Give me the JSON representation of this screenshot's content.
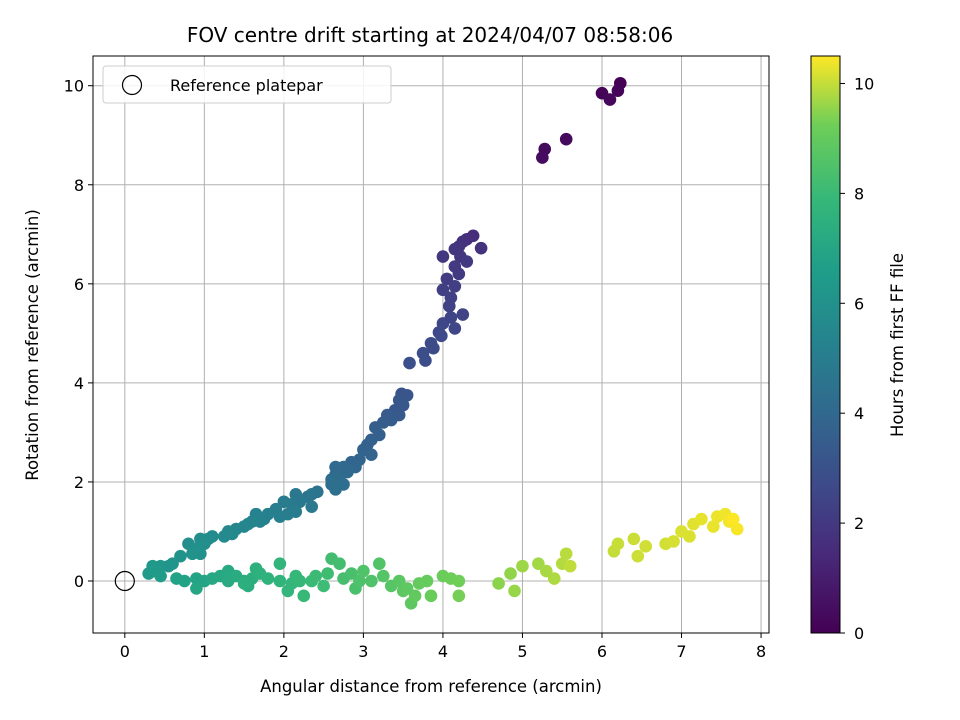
{
  "chart_data": {
    "type": "scatter",
    "title": "FOV centre drift starting at 2024/04/07 08:58:06",
    "xlabel": "Angular distance from reference (arcmin)",
    "ylabel": "Rotation from reference (arcmin)",
    "xlim": [
      -0.4,
      8.1
    ],
    "ylim": [
      -1.05,
      10.6
    ],
    "xticks": [
      0,
      1,
      2,
      3,
      4,
      5,
      6,
      7,
      8
    ],
    "yticks": [
      0,
      2,
      4,
      6,
      8,
      10
    ],
    "grid": true,
    "legend": {
      "placement": "top-left",
      "entries": [
        "Reference platepar"
      ]
    },
    "reference_point": {
      "x": 0,
      "y": 0,
      "label": "Reference platepar"
    },
    "colorbar": {
      "label": "Hours from first FF file",
      "min": 0,
      "max": 10.5,
      "ticks": [
        0,
        2,
        4,
        6,
        8,
        10
      ],
      "colormap": "viridis"
    },
    "series": [
      {
        "color_by": "hours",
        "points": [
          [
            6.23,
            10.05,
            0.05
          ],
          [
            6.2,
            9.9,
            0.1
          ],
          [
            6.0,
            9.85,
            0.15
          ],
          [
            6.1,
            9.72,
            0.2
          ],
          [
            5.55,
            8.92,
            0.3
          ],
          [
            5.28,
            8.72,
            0.35
          ],
          [
            5.25,
            8.55,
            0.4
          ],
          [
            4.38,
            6.97,
            1.6
          ],
          [
            4.3,
            6.9,
            1.65
          ],
          [
            4.25,
            6.85,
            1.7
          ],
          [
            4.48,
            6.72,
            1.75
          ],
          [
            4.2,
            6.75,
            1.8
          ],
          [
            4.15,
            6.7,
            1.85
          ],
          [
            4.22,
            6.55,
            1.9
          ],
          [
            4.0,
            6.55,
            1.95
          ],
          [
            4.3,
            6.45,
            2.0
          ],
          [
            4.15,
            6.35,
            2.05
          ],
          [
            4.2,
            6.2,
            2.1
          ],
          [
            4.05,
            6.1,
            2.15
          ],
          [
            4.15,
            5.95,
            2.2
          ],
          [
            4.0,
            5.88,
            2.25
          ],
          [
            4.1,
            5.72,
            2.3
          ],
          [
            4.08,
            5.55,
            2.35
          ],
          [
            4.25,
            5.38,
            2.4
          ],
          [
            4.1,
            5.32,
            2.45
          ],
          [
            4.0,
            5.2,
            2.5
          ],
          [
            4.15,
            5.1,
            2.55
          ],
          [
            3.95,
            5.02,
            2.6
          ],
          [
            3.98,
            4.95,
            2.65
          ],
          [
            3.85,
            4.8,
            2.7
          ],
          [
            3.88,
            4.7,
            2.75
          ],
          [
            3.75,
            4.6,
            2.8
          ],
          [
            3.78,
            4.45,
            2.85
          ],
          [
            3.58,
            4.4,
            2.9
          ],
          [
            3.48,
            3.78,
            3.1
          ],
          [
            3.55,
            3.75,
            3.15
          ],
          [
            3.45,
            3.65,
            3.2
          ],
          [
            3.5,
            3.55,
            3.25
          ],
          [
            3.4,
            3.45,
            3.3
          ],
          [
            3.45,
            3.35,
            3.35
          ],
          [
            3.3,
            3.35,
            3.4
          ],
          [
            3.35,
            3.25,
            3.45
          ],
          [
            3.25,
            3.2,
            3.5
          ],
          [
            3.15,
            3.1,
            3.55
          ],
          [
            3.2,
            2.95,
            3.6
          ],
          [
            3.1,
            2.85,
            3.65
          ],
          [
            3.05,
            2.75,
            3.7
          ],
          [
            3.0,
            2.65,
            3.75
          ],
          [
            3.1,
            2.55,
            3.8
          ],
          [
            2.95,
            2.45,
            3.85
          ],
          [
            2.85,
            2.4,
            3.9
          ],
          [
            2.9,
            2.3,
            3.95
          ],
          [
            2.75,
            2.3,
            4.0
          ],
          [
            2.8,
            2.2,
            4.05
          ],
          [
            2.65,
            2.3,
            4.1
          ],
          [
            2.65,
            2.15,
            4.15
          ],
          [
            2.7,
            2.05,
            4.2
          ],
          [
            2.6,
            2.05,
            4.25
          ],
          [
            2.75,
            1.95,
            4.3
          ],
          [
            2.6,
            1.95,
            4.35
          ],
          [
            2.65,
            1.85,
            4.4
          ],
          [
            2.42,
            1.8,
            4.55
          ],
          [
            2.35,
            1.75,
            4.6
          ],
          [
            2.3,
            1.7,
            4.65
          ],
          [
            2.15,
            1.75,
            4.7
          ],
          [
            2.2,
            1.6,
            4.75
          ],
          [
            2.35,
            1.5,
            4.8
          ],
          [
            2.1,
            1.55,
            4.85
          ],
          [
            2.0,
            1.6,
            4.9
          ],
          [
            2.15,
            1.4,
            4.95
          ],
          [
            1.9,
            1.45,
            5.0
          ],
          [
            2.05,
            1.35,
            5.05
          ],
          [
            1.95,
            1.3,
            5.1
          ],
          [
            1.8,
            1.35,
            5.15
          ],
          [
            1.75,
            1.25,
            5.2
          ],
          [
            1.65,
            1.35,
            5.25
          ],
          [
            1.7,
            1.2,
            5.3
          ],
          [
            1.6,
            1.2,
            5.35
          ],
          [
            1.55,
            1.15,
            5.4
          ],
          [
            1.5,
            1.1,
            5.45
          ],
          [
            1.4,
            1.05,
            5.5
          ],
          [
            1.3,
            1.0,
            5.55
          ],
          [
            1.35,
            0.95,
            5.6
          ],
          [
            1.25,
            0.9,
            5.65
          ],
          [
            1.1,
            0.9,
            5.7
          ],
          [
            1.05,
            0.85,
            5.75
          ],
          [
            0.95,
            0.85,
            5.8
          ],
          [
            1.0,
            0.75,
            5.85
          ],
          [
            0.8,
            0.75,
            5.9
          ],
          [
            0.9,
            0.65,
            5.95
          ],
          [
            0.95,
            0.55,
            6.0
          ],
          [
            0.85,
            0.55,
            6.05
          ],
          [
            0.7,
            0.5,
            6.1
          ],
          [
            0.6,
            0.35,
            6.15
          ],
          [
            0.55,
            0.3,
            6.2
          ],
          [
            0.45,
            0.3,
            6.25
          ],
          [
            0.4,
            0.25,
            6.3
          ],
          [
            0.35,
            0.3,
            6.35
          ],
          [
            0.35,
            0.2,
            6.4
          ],
          [
            0.3,
            0.15,
            6.45
          ],
          [
            0.45,
            0.1,
            6.5
          ],
          [
            0.65,
            0.05,
            6.8
          ],
          [
            0.75,
            0.0,
            6.85
          ],
          [
            0.9,
            0.05,
            6.9
          ],
          [
            1.0,
            0.0,
            6.95
          ],
          [
            0.9,
            -0.15,
            7.0
          ],
          [
            1.1,
            0.05,
            7.05
          ],
          [
            1.2,
            0.1,
            7.1
          ],
          [
            1.3,
            0.2,
            7.15
          ],
          [
            1.3,
            0.0,
            7.2
          ],
          [
            1.4,
            0.1,
            7.25
          ],
          [
            1.5,
            0.0,
            7.3
          ],
          [
            1.55,
            -0.1,
            7.35
          ],
          [
            1.6,
            0.05,
            7.4
          ],
          [
            1.65,
            0.25,
            7.45
          ],
          [
            1.5,
            -0.05,
            7.5
          ],
          [
            1.7,
            0.15,
            7.55
          ],
          [
            1.8,
            0.05,
            7.6
          ],
          [
            1.95,
            0.0,
            7.65
          ],
          [
            1.95,
            0.35,
            7.7
          ],
          [
            2.05,
            -0.2,
            7.75
          ],
          [
            2.1,
            -0.05,
            7.8
          ],
          [
            2.15,
            0.1,
            7.85
          ],
          [
            2.2,
            0.0,
            7.9
          ],
          [
            2.25,
            -0.3,
            7.95
          ],
          [
            2.35,
            0.0,
            8.0
          ],
          [
            2.4,
            0.1,
            8.05
          ],
          [
            2.5,
            -0.1,
            8.1
          ],
          [
            2.55,
            0.15,
            8.15
          ],
          [
            2.6,
            0.45,
            8.2
          ],
          [
            2.7,
            0.35,
            8.25
          ],
          [
            2.75,
            0.05,
            8.3
          ],
          [
            2.85,
            0.15,
            8.35
          ],
          [
            2.9,
            -0.15,
            8.4
          ],
          [
            2.95,
            0.0,
            8.45
          ],
          [
            3.0,
            0.2,
            8.5
          ],
          [
            3.1,
            0.0,
            8.55
          ],
          [
            3.2,
            0.35,
            8.6
          ],
          [
            3.25,
            0.1,
            8.65
          ],
          [
            3.35,
            -0.1,
            8.7
          ],
          [
            3.45,
            0.0,
            8.75
          ],
          [
            3.5,
            -0.2,
            8.8
          ],
          [
            3.6,
            -0.45,
            8.85
          ],
          [
            3.55,
            -0.15,
            8.9
          ],
          [
            3.65,
            -0.3,
            8.95
          ],
          [
            3.7,
            -0.05,
            9.0
          ],
          [
            3.8,
            0.0,
            9.05
          ],
          [
            3.85,
            -0.3,
            9.1
          ],
          [
            4.0,
            0.1,
            9.15
          ],
          [
            4.1,
            0.05,
            9.2
          ],
          [
            4.2,
            0.0,
            9.25
          ],
          [
            4.2,
            -0.3,
            9.3
          ],
          [
            4.7,
            -0.05,
            9.5
          ],
          [
            4.85,
            0.15,
            9.55
          ],
          [
            4.9,
            -0.2,
            9.6
          ],
          [
            5.0,
            0.3,
            9.65
          ],
          [
            5.2,
            0.35,
            9.7
          ],
          [
            5.3,
            0.2,
            9.75
          ],
          [
            5.4,
            0.05,
            9.8
          ],
          [
            5.5,
            0.35,
            9.85
          ],
          [
            5.55,
            0.55,
            9.9
          ],
          [
            5.6,
            0.3,
            9.95
          ],
          [
            6.15,
            0.6,
            10.0
          ],
          [
            6.2,
            0.75,
            10.02
          ],
          [
            6.4,
            0.85,
            10.05
          ],
          [
            6.45,
            0.5,
            10.08
          ],
          [
            6.55,
            0.7,
            10.1
          ],
          [
            6.8,
            0.75,
            10.12
          ],
          [
            6.9,
            0.8,
            10.15
          ],
          [
            7.0,
            1.0,
            10.18
          ],
          [
            7.1,
            0.9,
            10.2
          ],
          [
            7.15,
            1.15,
            10.25
          ],
          [
            7.25,
            1.25,
            10.3
          ],
          [
            7.4,
            1.1,
            10.32
          ],
          [
            7.45,
            1.3,
            10.35
          ],
          [
            7.55,
            1.35,
            10.38
          ],
          [
            7.6,
            1.2,
            10.42
          ],
          [
            7.7,
            1.05,
            10.45
          ],
          [
            7.65,
            1.25,
            10.5
          ]
        ]
      }
    ]
  }
}
